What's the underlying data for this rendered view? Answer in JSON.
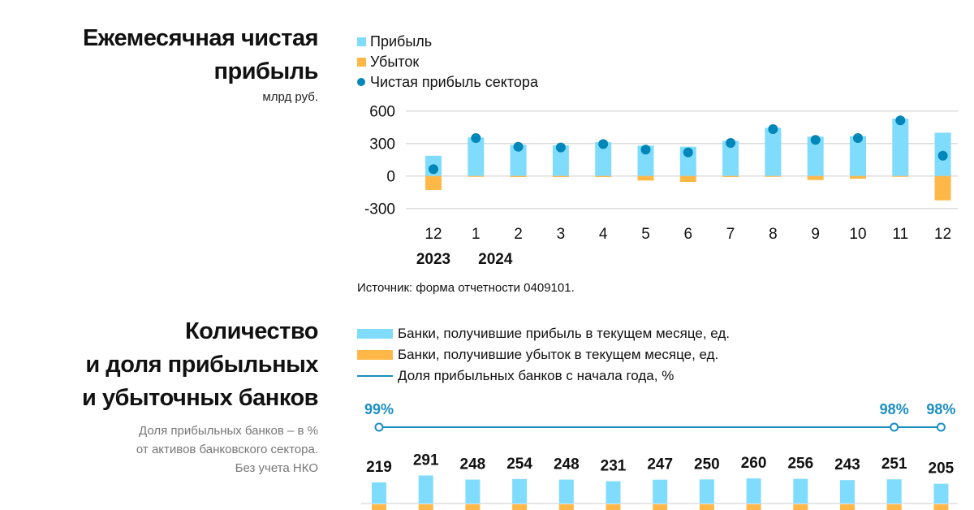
{
  "colors": {
    "profit": "#80dcfc",
    "loss": "#ffb847",
    "net": "#0086b8",
    "line": "#1a8fc2",
    "grid": "#dddddd"
  },
  "chart_data": [
    {
      "type": "bar",
      "title": "Ежемесячная чистая прибыль",
      "title_lines": [
        "Ежемесячная чистая",
        "прибыль"
      ],
      "ylabel": "млрд руб.",
      "categories": [
        "12",
        "1",
        "2",
        "3",
        "4",
        "5",
        "6",
        "7",
        "8",
        "9",
        "10",
        "11",
        "12"
      ],
      "year_labels": [
        "2023",
        "2024"
      ],
      "yticks": [
        "600",
        "300",
        "0",
        "-300"
      ],
      "ylim": [
        -300,
        600
      ],
      "legend": [
        "Прибыль",
        "Убыток",
        "Чистая прибыль сектора"
      ],
      "series": [
        {
          "name": "Прибыль",
          "values": [
            187,
            355,
            288,
            283,
            313,
            280,
            270,
            325,
            445,
            363,
            368,
            530,
            400
          ]
        },
        {
          "name": "Убыток",
          "values": [
            -130,
            -8,
            -10,
            -10,
            -10,
            -42,
            -55,
            -10,
            -8,
            -37,
            -25,
            -8,
            -225
          ]
        },
        {
          "name": "Чистая прибыль сектора",
          "values": [
            63,
            350,
            270,
            263,
            295,
            243,
            218,
            305,
            433,
            333,
            350,
            513,
            187
          ]
        }
      ],
      "source": "Источник: форма отчетности 0409101."
    },
    {
      "type": "bar",
      "title": "Количество и доля прибыльных и убыточных банков",
      "title_lines": [
        "Количество",
        "и доля прибыльных",
        "и убыточных банков"
      ],
      "notes": [
        "Доля прибыльных банков – в %",
        "от активов банковского сектора.",
        "Без учета НКО"
      ],
      "legend": [
        "Банки, получившие прибыль в текущем месяце, ед.",
        "Банки, получившие убыток в текущем месяце, ед.",
        "Доля прибыльных банков с начала года, %"
      ],
      "series": [
        {
          "name": "Банки, получившие прибыль в текущем месяце, ед.",
          "values": [
            219,
            291,
            248,
            254,
            248,
            231,
            247,
            250,
            260,
            256,
            243,
            251,
            205
          ]
        },
        {
          "name": "Доля прибыльных банков с начала года, %",
          "points": [
            {
              "index": 0,
              "value": 99,
              "label": "99%"
            },
            {
              "index": 11,
              "value": 98,
              "label": "98%"
            },
            {
              "index": 12,
              "value": 98,
              "label": "98%"
            }
          ]
        }
      ]
    }
  ]
}
